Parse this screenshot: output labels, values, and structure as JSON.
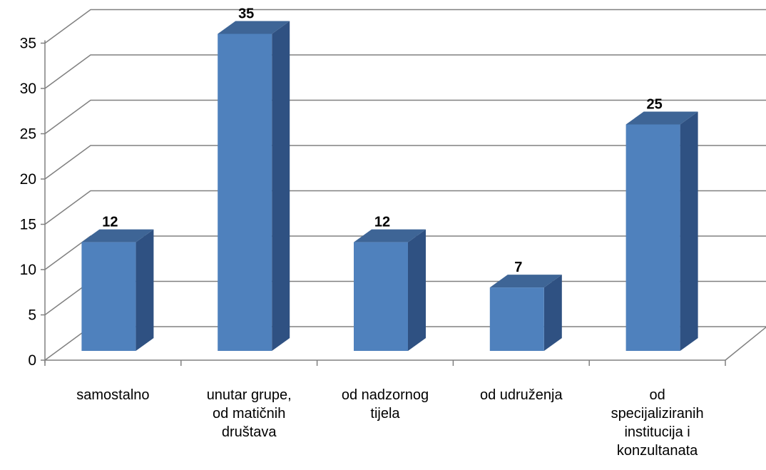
{
  "chart_data": {
    "type": "bar",
    "categories": [
      "samostalno",
      "unutar grupe,\nod matičnih\ndruštava",
      "od nadzornog\ntijela",
      "od udruženja",
      "od\nspecijaliziranih\ninstitucija i\nkonzultanata"
    ],
    "values": [
      12,
      35,
      12,
      7,
      25
    ],
    "data_labels": [
      "12",
      "35",
      "12",
      "7",
      "25"
    ],
    "yticks": [
      "0",
      "5",
      "10",
      "15",
      "20",
      "25",
      "30",
      "35"
    ],
    "ylim": [
      0,
      35
    ],
    "grid": true,
    "style": "3d-column",
    "colors": {
      "bar_front": "#4f81bd",
      "bar_side": "#2f5182",
      "bar_top": "#3e6596",
      "grid": "#808080"
    }
  }
}
